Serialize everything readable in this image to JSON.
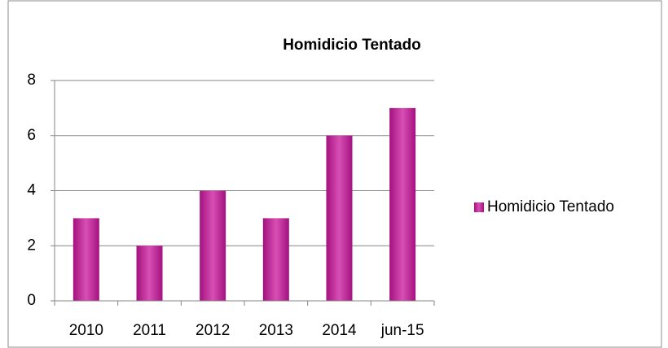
{
  "chart_data": {
    "type": "bar",
    "title": "Homidicio Tentado",
    "categories": [
      "2010",
      "2011",
      "2012",
      "2013",
      "2014",
      "jun-15"
    ],
    "series": [
      {
        "name": "Homidicio Tentado",
        "color": "#a3117f",
        "values": [
          3,
          2,
          4,
          3,
          6,
          7
        ]
      }
    ],
    "ylim": [
      0,
      8
    ],
    "yticks": [
      0,
      2,
      4,
      6,
      8
    ],
    "grid": true,
    "legend": "right"
  }
}
